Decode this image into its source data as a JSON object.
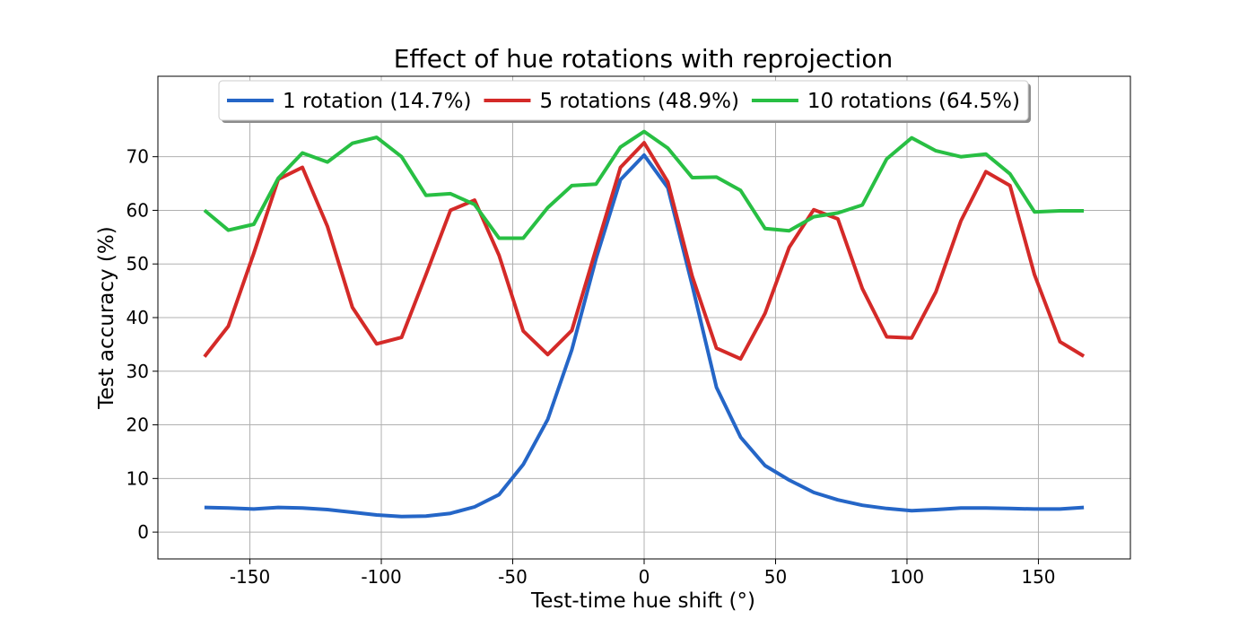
{
  "chart_data": {
    "type": "line",
    "title": "Effect of hue rotations with reprojection",
    "xlabel": "Test-time hue shift (°)",
    "ylabel": "Test accuracy (%)",
    "xlim": [
      -185,
      185
    ],
    "ylim": [
      -5,
      85
    ],
    "xticks": [
      -150,
      -100,
      -50,
      0,
      50,
      100,
      150
    ],
    "yticks": [
      0,
      10,
      20,
      30,
      40,
      50,
      60,
      70
    ],
    "grid": true,
    "legend_position": "top-center",
    "x": [
      -167.3,
      -158.2,
      -148.5,
      -139.2,
      -130,
      -120.5,
      -111,
      -101.8,
      -92.3,
      -83,
      -73.7,
      -64.5,
      -55.2,
      -46,
      -36.7,
      -27.5,
      -18.3,
      -9,
      0,
      9,
      18.3,
      27.5,
      36.7,
      46,
      55.2,
      64.5,
      73.7,
      83,
      92.3,
      101.8,
      111,
      120.5,
      130,
      139.2,
      148.5,
      158.2,
      167.3
    ],
    "series": [
      {
        "name": "1 rotation (14.7%)",
        "color": "#2566c7",
        "values": [
          4.6,
          4.5,
          4.3,
          4.6,
          4.5,
          4.2,
          3.7,
          3.2,
          2.9,
          3.0,
          3.5,
          4.7,
          7.0,
          12.6,
          21.0,
          34.0,
          51.0,
          65.7,
          70.3,
          64.2,
          46.0,
          27.0,
          17.7,
          12.4,
          9.7,
          7.4,
          6.0,
          5.0,
          4.4,
          4.0,
          4.2,
          4.5,
          4.5,
          4.4,
          4.3,
          4.3,
          4.6
        ]
      },
      {
        "name": "5 rotations (48.9%)",
        "color": "#d42a28",
        "values": [
          32.7,
          38.4,
          52.0,
          65.8,
          68.0,
          57.0,
          41.9,
          35.1,
          36.3,
          48.0,
          60.0,
          61.9,
          51.6,
          37.5,
          33.1,
          37.6,
          52.8,
          68.0,
          72.6,
          65.3,
          47.7,
          34.3,
          32.3,
          40.8,
          53.1,
          60.1,
          58.4,
          45.4,
          36.4,
          36.2,
          44.8,
          58.0,
          67.2,
          64.6,
          48.0,
          35.5,
          32.8
        ]
      },
      {
        "name": "10 rotations (64.5%)",
        "color": "#28bf43",
        "values": [
          60.0,
          56.3,
          57.4,
          66.0,
          70.7,
          69.0,
          72.5,
          73.6,
          70.0,
          62.8,
          63.1,
          61.1,
          54.8,
          54.8,
          60.5,
          64.6,
          64.9,
          71.8,
          74.7,
          71.6,
          66.1,
          66.2,
          63.7,
          56.6,
          56.2,
          58.8,
          59.5,
          61.0,
          69.6,
          73.5,
          71.1,
          70.0,
          70.5,
          66.8,
          59.7,
          59.9,
          59.9
        ]
      }
    ]
  }
}
